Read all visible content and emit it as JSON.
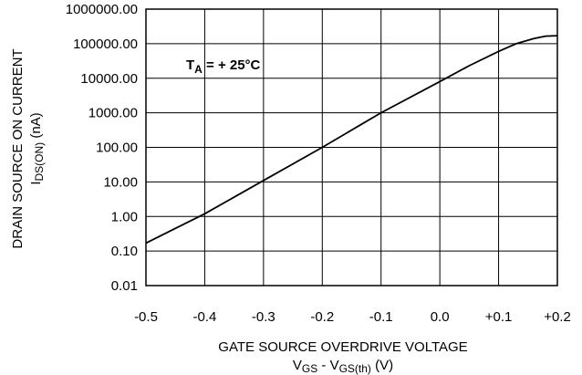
{
  "chart_data": {
    "type": "line",
    "annotation": {
      "main": "T",
      "sub": "A",
      "rest": " = + 25°C"
    },
    "xlabel": {
      "line1": "GATE SOURCE OVERDRIVE VOLTAGE",
      "line2_parts": [
        "V",
        "GS",
        " - V",
        "GS(th)",
        " (V)"
      ]
    },
    "ylabel": {
      "line1": "DRAIN SOURCE ON CURRENT",
      "line2_parts": [
        "I",
        "DS(ON)",
        " (nA)"
      ]
    },
    "x_ticks": [
      "-0.5",
      "-0.4",
      "-0.3",
      "-0.2",
      "-0.1",
      "0.0",
      "+0.1",
      "+0.2"
    ],
    "x_tick_values": [
      -0.5,
      -0.4,
      -0.3,
      -0.2,
      -0.1,
      0.0,
      0.1,
      0.2
    ],
    "y_ticks": [
      "0.01",
      "0.10",
      "1.00",
      "10.00",
      "100.00",
      "1000.00",
      "10000.00",
      "100000.00",
      "1000000.00"
    ],
    "y_tick_values": [
      0.01,
      0.1,
      1,
      10,
      100,
      1000,
      10000,
      100000,
      1000000
    ],
    "y_scale": "log",
    "xlim": [
      -0.5,
      0.2
    ],
    "ylim": [
      0.01,
      1000000
    ],
    "grid": true,
    "series": [
      {
        "x": [
          -0.5,
          -0.4,
          -0.3,
          -0.2,
          -0.1,
          0.0,
          0.05,
          0.1,
          0.13,
          0.16,
          0.18,
          0.2
        ],
        "y": [
          0.17,
          1.2,
          11,
          100,
          1000,
          8000,
          23000,
          60000,
          100000,
          140000,
          165000,
          170000
        ]
      }
    ]
  }
}
